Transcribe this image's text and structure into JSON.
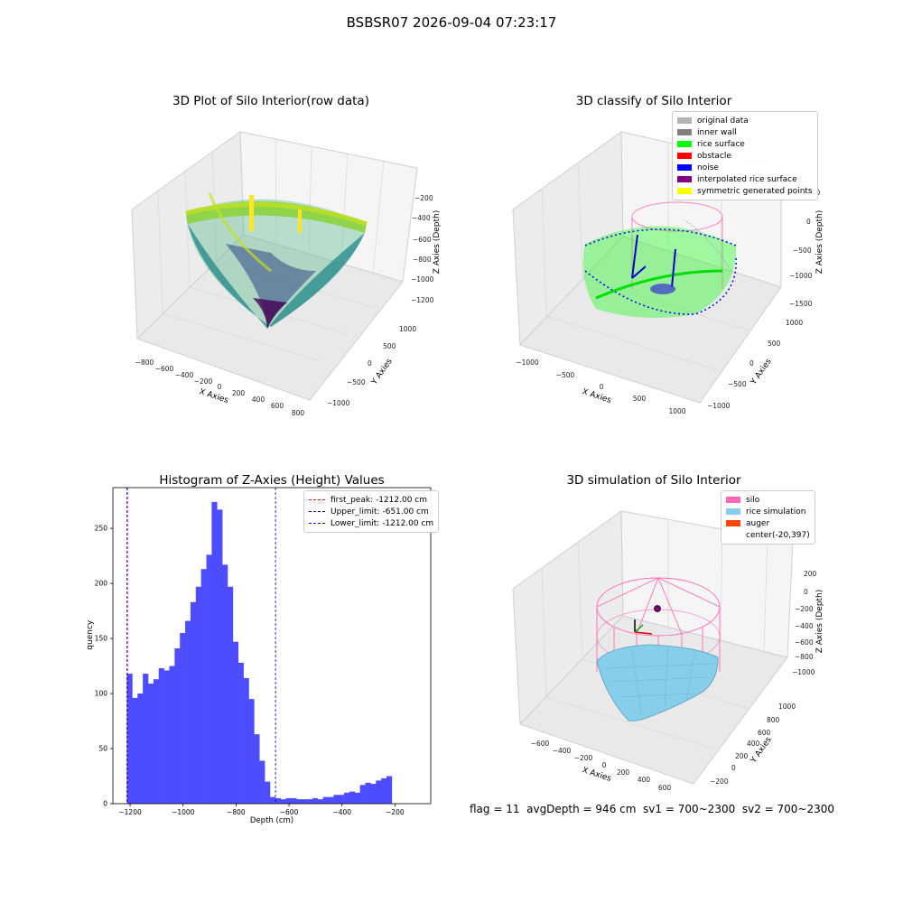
{
  "figure": {
    "suptitle": "BSBSR07 2026-09-04 07:23:17",
    "status_line": "flag = 11  avgDepth = 946 cm  sv1 = 700~2300  sv2 = 700~2300"
  },
  "panels": {
    "raw": {
      "title": "3D Plot of Silo Interior(row data)",
      "xlabel": "X Axies",
      "ylabel": "Y Axies",
      "zlabel": "Z Axies (Depth)",
      "xticks": [
        "−800",
        "−600",
        "−400",
        "−200",
        "0",
        "200",
        "400",
        "600",
        "800"
      ],
      "yticks": [
        "1000",
        "500",
        "0",
        "−500",
        "−1000"
      ],
      "zticks": [
        "−200",
        "−400",
        "−600",
        "−800",
        "−1000",
        "−1200"
      ]
    },
    "classify": {
      "title": "3D classify of Silo Interior",
      "xlabel": "X Axies",
      "ylabel": "Y Axies",
      "zlabel": "Z Axies (Depth)",
      "xticks": [
        "−1000",
        "−500",
        "0",
        "500",
        "1000"
      ],
      "yticks": [
        "1000",
        "500",
        "0",
        "−500",
        "−1000"
      ],
      "zticks": [
        "500",
        "0",
        "−500",
        "−1000",
        "−1500"
      ],
      "legend": [
        {
          "label": "original data",
          "color": "#b3b3b3"
        },
        {
          "label": "inner wall",
          "color": "#808080"
        },
        {
          "label": "rice surface",
          "color": "#00ff00"
        },
        {
          "label": "obstacle",
          "color": "#ff0000"
        },
        {
          "label": "noise",
          "color": "#0000ff"
        },
        {
          "label": "interpolated rice surface",
          "color": "#800080"
        },
        {
          "label": "symmetric generated points",
          "color": "#ffff00"
        }
      ]
    },
    "simulation": {
      "title": "3D simulation of Silo Interior",
      "xlabel": "X Axies",
      "ylabel": "Y Axies",
      "zlabel": "Z Axies (Depth)",
      "xticks": [
        "−600",
        "−400",
        "−200",
        "0",
        "200",
        "400",
        "600"
      ],
      "yticks": [
        "1000",
        "800",
        "600",
        "400",
        "200",
        "0",
        "−200"
      ],
      "zticks": [
        "200",
        "0",
        "−200",
        "−400",
        "−600",
        "−800",
        "−1000"
      ],
      "legend": [
        {
          "label": "silo",
          "color": "#ff69b4"
        },
        {
          "label": "rice simulation",
          "color": "#87ceeb"
        },
        {
          "label": "auger",
          "color": "#ff4500"
        },
        {
          "label": "center(-20,397)",
          "color": ""
        }
      ]
    }
  },
  "chart_data": [
    {
      "type": "bar",
      "title": "Histogram of Z-Axies (Height) Values",
      "xlabel": "Depth (cm)",
      "ylabel": "Frequency",
      "xlim": [
        -1265,
        -65
      ],
      "ylim": [
        0,
        287
      ],
      "bar_color": "#4d4dff",
      "bin_width": 20,
      "bin_start": -1212,
      "values": [
        118,
        96,
        100,
        118,
        109,
        113,
        123,
        121,
        125,
        141,
        155,
        166,
        183,
        197,
        213,
        226,
        274,
        267,
        217,
        197,
        147,
        128,
        114,
        95,
        63,
        39,
        20,
        6,
        5,
        4,
        5,
        5,
        4,
        4,
        4,
        5,
        4,
        6,
        6,
        8,
        8,
        10,
        11,
        10,
        17,
        19,
        18,
        21,
        23,
        25
      ],
      "xticks": [
        -1200,
        -1000,
        -800,
        -600,
        -400,
        -200
      ],
      "xtick_labels": [
        "−1200",
        "−1000",
        "−800",
        "−600",
        "−400",
        "−200"
      ],
      "yticks": [
        0,
        50,
        100,
        150,
        200,
        250
      ],
      "vlines": [
        {
          "x": -1212,
          "color": "#ff0000",
          "label": "first_peak: -1212.00 cm"
        },
        {
          "x": -651,
          "color": "#00008b",
          "label": "Upper_limit: -651.00 cm"
        },
        {
          "x": -1212,
          "color": "#0000ff",
          "label": "Lower_limit: -1212.00 cm"
        }
      ]
    }
  ]
}
